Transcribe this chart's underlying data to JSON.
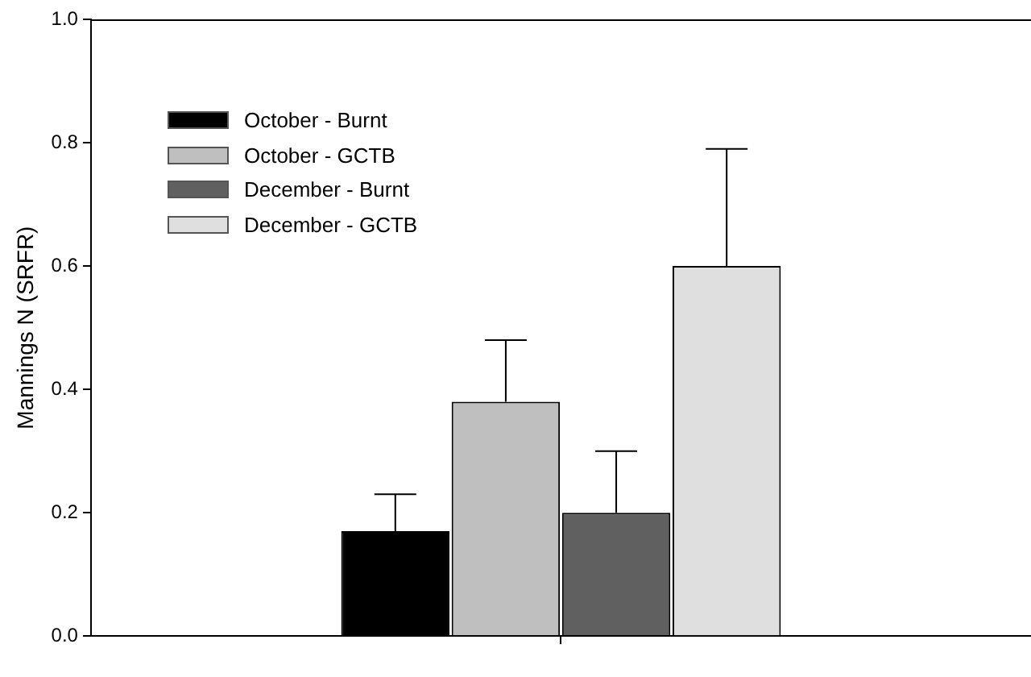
{
  "chart_data": {
    "type": "bar",
    "ylabel": "Mannings N (SRFR)",
    "categories": [
      null
    ],
    "series": [
      {
        "name": "October - Burnt",
        "color": "#000000",
        "values": [
          0.17
        ],
        "errors": [
          [
            0.17,
            0.23
          ]
        ]
      },
      {
        "name": "October - GCTB",
        "color": "#bfbfbf",
        "values": [
          0.38
        ],
        "errors": [
          [
            0.38,
            0.48
          ]
        ]
      },
      {
        "name": "December - Burnt",
        "color": "#606060",
        "values": [
          0.2
        ],
        "errors": [
          [
            0.2,
            0.3
          ]
        ]
      },
      {
        "name": "December - GCTB",
        "color": "#dfdfdf",
        "values": [
          0.6
        ],
        "errors": [
          [
            0.6,
            0.79
          ]
        ]
      }
    ],
    "ylim": [
      0,
      1
    ],
    "yticks": [
      {
        "value": 0,
        "label": "0.0"
      },
      {
        "value": 0.2,
        "label": "0.2"
      },
      {
        "value": 0.4,
        "label": "0.4"
      },
      {
        "value": 0.6,
        "label": "0.6"
      },
      {
        "value": 0.8,
        "label": "0.8"
      },
      {
        "value": 1,
        "label": "1.0"
      }
    ],
    "grid": false,
    "legend": "top left"
  }
}
